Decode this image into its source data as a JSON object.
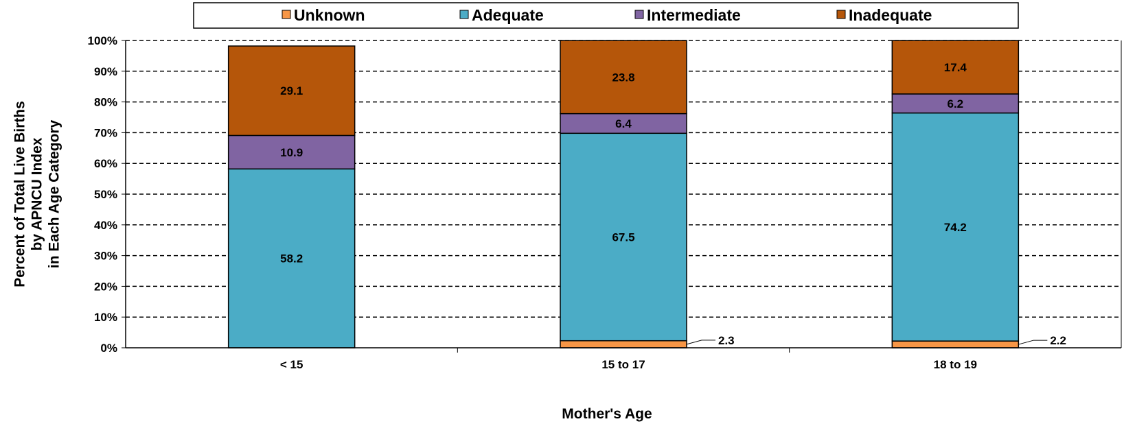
{
  "chart_data": {
    "type": "bar",
    "stacked": true,
    "categories": [
      "< 15",
      "15 to 17",
      "18 to 19"
    ],
    "series": [
      {
        "name": "Unknown",
        "color": "#F79646",
        "values": [
          0,
          2.3,
          2.2
        ]
      },
      {
        "name": "Adequate",
        "color": "#4BACC6",
        "values": [
          58.2,
          67.5,
          74.2
        ]
      },
      {
        "name": "Intermediate",
        "color": "#8064A2",
        "values": [
          10.9,
          6.4,
          6.2
        ]
      },
      {
        "name": "Inadequate",
        "color": "#B5560A",
        "values": [
          29.1,
          23.8,
          17.4
        ]
      }
    ],
    "data_labels": [
      {
        "series": "Inadequate",
        "category": "< 15",
        "text": "29.1"
      },
      {
        "series": "Intermediate",
        "category": "< 15",
        "text": "10.9"
      },
      {
        "series": "Adequate",
        "category": "< 15",
        "text": "58.2"
      },
      {
        "series": "Inadequate",
        "category": "15 to 17",
        "text": "23.8"
      },
      {
        "series": "Intermediate",
        "category": "15 to 17",
        "text": "6.4"
      },
      {
        "series": "Adequate",
        "category": "15 to 17",
        "text": "67.5"
      },
      {
        "series": "Unknown",
        "category": "15 to 17",
        "text": "2.3",
        "callout": true
      },
      {
        "series": "Inadequate",
        "category": "18 to 19",
        "text": "17.4"
      },
      {
        "series": "Intermediate",
        "category": "18 to 19",
        "text": "6.2"
      },
      {
        "series": "Adequate",
        "category": "18 to 19",
        "text": "74.2"
      },
      {
        "series": "Unknown",
        "category": "18 to 19",
        "text": "2.2",
        "callout": true
      }
    ],
    "xlabel": "Mother's Age",
    "ylabel_lines": [
      "Percent of Total Live Births",
      "by APNCU Index",
      "in Each Age Category"
    ],
    "ylim": [
      0,
      100
    ],
    "yticks": [
      "0%",
      "10%",
      "20%",
      "30%",
      "40%",
      "50%",
      "60%",
      "70%",
      "80%",
      "90%",
      "100%"
    ],
    "grid": true,
    "legend_position": "top"
  }
}
